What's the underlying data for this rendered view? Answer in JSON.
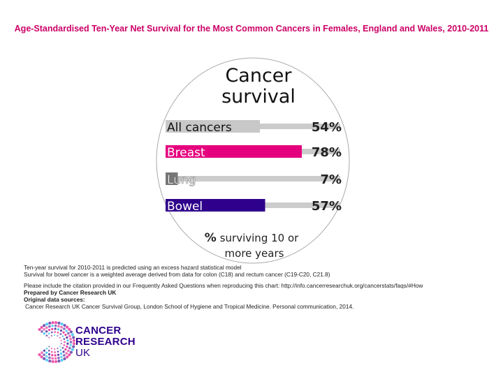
{
  "title": "Age-Standardised Ten-Year Net Survival for the Most Common Cancers in Females, England and Wales, 2010-2011",
  "chart_data": {
    "type": "bar",
    "title": "Cancer survival",
    "categories": [
      "All cancers",
      "Breast",
      "Lung",
      "Bowel"
    ],
    "values": [
      54,
      78,
      7,
      57
    ],
    "value_labels": [
      "54%",
      "78%",
      "7%",
      "57%"
    ],
    "colors": [
      "#c8c8c8",
      "#e5007e",
      "#777777",
      "#2e008b"
    ],
    "track_color": "#cccccc",
    "caption_symbol": "%",
    "caption_text": "surviving 10 or more years",
    "xlim": [
      0,
      100
    ]
  },
  "notes": {
    "line1": "Ten-year survival for 2010-2011 is predicted using an excess hazard statistical model",
    "line2": "Survival for bowel cancer is a weighted average derived from data for colon (C18) and rectum cancer (C19-C20, C21.8)",
    "citation": "Please include the citation provided in our Frequently Asked Questions when reproducing this chart: http://info.cancerresearchuk.org/cancerstats/faqs/#How",
    "prepared_by": "Prepared by Cancer Research UK",
    "sources_label": "Original data sources:",
    "source1": "Cancer Research UK Cancer Survival Group, London School of Hygiene and Tropical Medicine. Personal communication, 2014."
  },
  "logo": {
    "line1": "CANCER",
    "line2": "RESEARCH",
    "line3": "UK"
  }
}
